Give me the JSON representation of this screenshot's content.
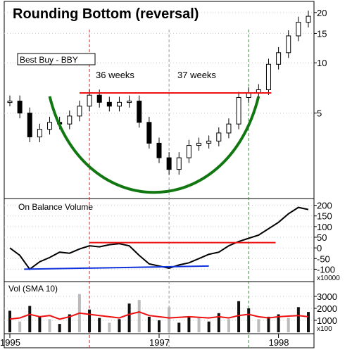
{
  "chart_data": {
    "type": "line",
    "title": "Rounding Bottom (reversal)",
    "stock_label": "Best Buy - BBY",
    "annotations": [
      {
        "text": "36 weeks",
        "between": [
          "1996-06",
          "1997-02"
        ]
      },
      {
        "text": "37 weeks",
        "between": [
          "1997-02",
          "1997-11"
        ]
      }
    ],
    "x_tick_labels": [
      "1995",
      "1997",
      "1998"
    ],
    "price_panel": {
      "scale": "log",
      "y_tick_labels": [
        "20",
        "15",
        "10",
        "5"
      ],
      "y_ticks": [
        20,
        15,
        10,
        5
      ],
      "ylim": [
        1.6,
        22
      ],
      "resistance_level": 6.6,
      "bowl_low": 1.75,
      "series": [
        {
          "x": "1995-10",
          "close": 5.9
        },
        {
          "x": "1995-11",
          "close": 5.0
        },
        {
          "x": "1995-12",
          "close": 3.6
        },
        {
          "x": "1996-01",
          "close": 4.0
        },
        {
          "x": "1996-02",
          "close": 4.4
        },
        {
          "x": "1996-03",
          "close": 4.3
        },
        {
          "x": "1996-04",
          "close": 4.8
        },
        {
          "x": "1996-05",
          "close": 5.5
        },
        {
          "x": "1996-06",
          "close": 6.4
        },
        {
          "x": "1996-07",
          "close": 5.8
        },
        {
          "x": "1996-08",
          "close": 5.5
        },
        {
          "x": "1996-09",
          "close": 5.8
        },
        {
          "x": "1996-10",
          "close": 5.9
        },
        {
          "x": "1996-11",
          "close": 4.4
        },
        {
          "x": "1996-12",
          "close": 3.3
        },
        {
          "x": "1997-01",
          "close": 2.7
        },
        {
          "x": "1997-02",
          "close": 2.3
        },
        {
          "x": "1997-03",
          "close": 2.7
        },
        {
          "x": "1997-04",
          "close": 3.2
        },
        {
          "x": "1997-05",
          "close": 3.3
        },
        {
          "x": "1997-06",
          "close": 3.4
        },
        {
          "x": "1997-07",
          "close": 3.8
        },
        {
          "x": "1997-08",
          "close": 4.3
        },
        {
          "x": "1997-09",
          "close": 6.2
        },
        {
          "x": "1997-10",
          "close": 6.6
        },
        {
          "x": "1997-11",
          "close": 6.9
        },
        {
          "x": "1997-12",
          "close": 9.8
        },
        {
          "x": "1998-01",
          "close": 11.5
        },
        {
          "x": "1998-02",
          "close": 14.5
        },
        {
          "x": "1998-03",
          "close": 17.5
        },
        {
          "x": "1998-04",
          "close": 19.0
        }
      ]
    },
    "obv_panel": {
      "label": "On Balance Volume",
      "multiplier_label": "x10000",
      "y_tick_labels": [
        "200",
        "150",
        "100",
        "50",
        "0",
        "-50",
        "-100"
      ],
      "y_ticks": [
        200,
        150,
        100,
        50,
        0,
        -50,
        -100
      ],
      "ylim": [
        -125,
        225
      ],
      "resistance_level": 25,
      "support_line": {
        "from": [
          "1995-12",
          -100
        ],
        "to": [
          "1997-06",
          -85
        ]
      },
      "series": [
        {
          "x": "1995-10",
          "value": 0
        },
        {
          "x": "1995-11",
          "value": -35
        },
        {
          "x": "1995-12",
          "value": -100
        },
        {
          "x": "1996-01",
          "value": -65
        },
        {
          "x": "1996-02",
          "value": -45
        },
        {
          "x": "1996-03",
          "value": -20
        },
        {
          "x": "1996-04",
          "value": -25
        },
        {
          "x": "1996-05",
          "value": -5
        },
        {
          "x": "1996-06",
          "value": 10
        },
        {
          "x": "1996-07",
          "value": 5
        },
        {
          "x": "1996-08",
          "value": 15
        },
        {
          "x": "1996-09",
          "value": 20
        },
        {
          "x": "1996-10",
          "value": 10
        },
        {
          "x": "1996-11",
          "value": -35
        },
        {
          "x": "1996-12",
          "value": -75
        },
        {
          "x": "1997-01",
          "value": -85
        },
        {
          "x": "1997-02",
          "value": -95
        },
        {
          "x": "1997-03",
          "value": -80
        },
        {
          "x": "1997-04",
          "value": -70
        },
        {
          "x": "1997-05",
          "value": -50
        },
        {
          "x": "1997-06",
          "value": -30
        },
        {
          "x": "1997-07",
          "value": -20
        },
        {
          "x": "1997-08",
          "value": 10
        },
        {
          "x": "1997-09",
          "value": 30
        },
        {
          "x": "1997-10",
          "value": 45
        },
        {
          "x": "1997-11",
          "value": 60
        },
        {
          "x": "1997-12",
          "value": 90
        },
        {
          "x": "1998-01",
          "value": 120
        },
        {
          "x": "1998-02",
          "value": 160
        },
        {
          "x": "1998-03",
          "value": 190
        },
        {
          "x": "1998-04",
          "value": 180
        }
      ]
    },
    "volume_panel": {
      "label": "Vol (SMA 10)",
      "multiplier_label": "x100",
      "y_tick_labels": [
        "3000",
        "2000",
        "1000"
      ],
      "y_ticks": [
        3000,
        2000,
        1000
      ],
      "ylim": [
        0,
        4000
      ],
      "sma_series": [
        1100,
        1200,
        1500,
        1300,
        1400,
        1100,
        1300,
        1600,
        1500,
        1400,
        1300,
        1200,
        1500,
        1700,
        1400,
        1300,
        1200,
        1250,
        1300,
        1250,
        1200,
        1300,
        1200,
        1400,
        1500,
        1300,
        1200,
        1300,
        1350,
        1400,
        1300
      ],
      "volume_bars": [
        1800,
        900,
        2200,
        1300,
        1100,
        700,
        1500,
        3200,
        1900,
        1200,
        800,
        1100,
        2400,
        2700,
        1300,
        1000,
        2100,
        800,
        1300,
        1200,
        900,
        1600,
        1100,
        2600,
        2000,
        1100,
        1300,
        1500,
        1200,
        2100,
        1700
      ]
    },
    "vertical_markers": [
      {
        "x": "1996-06",
        "color": "#e02020",
        "style": "dashed"
      },
      {
        "x": "1997-02",
        "color": "#999999",
        "style": "dashed"
      },
      {
        "x": "1997-10",
        "color": "#20a020",
        "style": "dashed"
      }
    ],
    "colors": {
      "resistance": "#ee1111",
      "bowl": "#117711",
      "obv": "#000000",
      "support": "#1133dd",
      "sma": "#ee1111",
      "volume": "#111111",
      "volume_alt": "#bbbbbb"
    }
  }
}
